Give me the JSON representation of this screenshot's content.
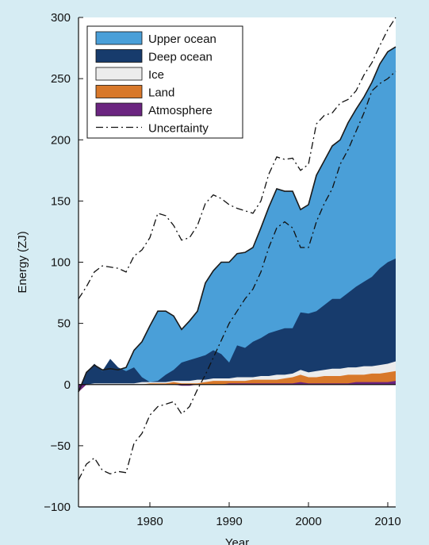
{
  "chart_data": {
    "type": "area",
    "xlabel": "Year",
    "ylabel": "Energy (ZJ)",
    "xlim": [
      1971,
      2011
    ],
    "ylim": [
      -100,
      300
    ],
    "xticks": [
      1980,
      1990,
      2000,
      2010
    ],
    "yticks": [
      -100,
      -50,
      0,
      50,
      100,
      150,
      200,
      250,
      300
    ],
    "legend_position": "top-left",
    "x": [
      1971,
      1972,
      1973,
      1974,
      1975,
      1976,
      1977,
      1978,
      1979,
      1980,
      1981,
      1982,
      1983,
      1984,
      1985,
      1986,
      1987,
      1988,
      1989,
      1990,
      1991,
      1992,
      1993,
      1994,
      1995,
      1996,
      1997,
      1998,
      1999,
      2000,
      2001,
      2002,
      2003,
      2004,
      2005,
      2006,
      2007,
      2008,
      2009,
      2010,
      2011
    ],
    "series": [
      {
        "name": "Upper ocean",
        "color": "#4a9fd8",
        "top": [
          -6,
          10,
          16,
          12,
          13,
          12,
          14,
          28,
          35,
          48,
          60,
          60,
          56,
          45,
          52,
          60,
          83,
          93,
          100,
          100,
          107,
          108,
          112,
          128,
          145,
          160,
          158,
          158,
          143,
          147,
          171,
          183,
          195,
          200,
          214,
          225,
          235,
          247,
          262,
          272,
          276
        ]
      },
      {
        "name": "Deep ocean",
        "color": "#173b6c",
        "top": [
          -6,
          10,
          17,
          11,
          21,
          14,
          11,
          14,
          6,
          2,
          3,
          8,
          12,
          18,
          20,
          22,
          24,
          28,
          25,
          18,
          32,
          30,
          35,
          38,
          42,
          44,
          46,
          46,
          59,
          58,
          60,
          65,
          70,
          70,
          75,
          80,
          84,
          88,
          95,
          100,
          103
        ]
      },
      {
        "name": "Ice",
        "color": "#ececec",
        "top": [
          -6,
          0,
          1,
          1,
          1,
          1,
          1,
          1,
          2,
          2,
          2,
          2,
          3,
          3,
          3,
          4,
          4,
          5,
          5,
          5,
          6,
          6,
          6,
          7,
          7,
          8,
          8,
          9,
          12,
          10,
          11,
          12,
          13,
          13,
          14,
          14,
          15,
          15,
          16,
          17,
          19
        ]
      },
      {
        "name": "Land",
        "color": "#d8782a",
        "top": [
          -6,
          0,
          0,
          0,
          0,
          0,
          0,
          0,
          0,
          1,
          1,
          1,
          2,
          1,
          1,
          1,
          2,
          3,
          3,
          3,
          3,
          3,
          4,
          4,
          4,
          4,
          5,
          6,
          8,
          6,
          6,
          7,
          7,
          7,
          8,
          8,
          8,
          9,
          9,
          10,
          11
        ]
      },
      {
        "name": "Atmosphere",
        "color": "#6b2580",
        "top": [
          -6,
          0,
          0,
          0,
          0,
          0,
          0,
          0,
          0,
          0,
          0,
          0,
          0,
          -1,
          -1,
          0,
          0,
          0,
          0,
          1,
          1,
          1,
          1,
          1,
          1,
          1,
          1,
          1,
          2,
          1,
          1,
          1,
          1,
          1,
          1,
          2,
          2,
          2,
          2,
          2,
          3
        ]
      }
    ],
    "uncertainty": {
      "name": "Uncertainty",
      "upper": [
        70,
        80,
        92,
        97,
        96,
        95,
        92,
        105,
        110,
        120,
        140,
        138,
        130,
        118,
        120,
        130,
        148,
        155,
        152,
        147,
        144,
        142,
        140,
        150,
        172,
        186,
        184,
        185,
        175,
        180,
        213,
        220,
        222,
        230,
        233,
        240,
        253,
        263,
        277,
        290,
        300
      ],
      "lower": [
        -78,
        -65,
        -60,
        -70,
        -73,
        -71,
        -72,
        -48,
        -40,
        -25,
        -18,
        -16,
        -14,
        -24,
        -18,
        -4,
        8,
        22,
        36,
        50,
        60,
        70,
        78,
        92,
        112,
        128,
        133,
        128,
        112,
        112,
        133,
        148,
        160,
        180,
        192,
        207,
        222,
        240,
        246,
        250,
        256
      ]
    }
  }
}
